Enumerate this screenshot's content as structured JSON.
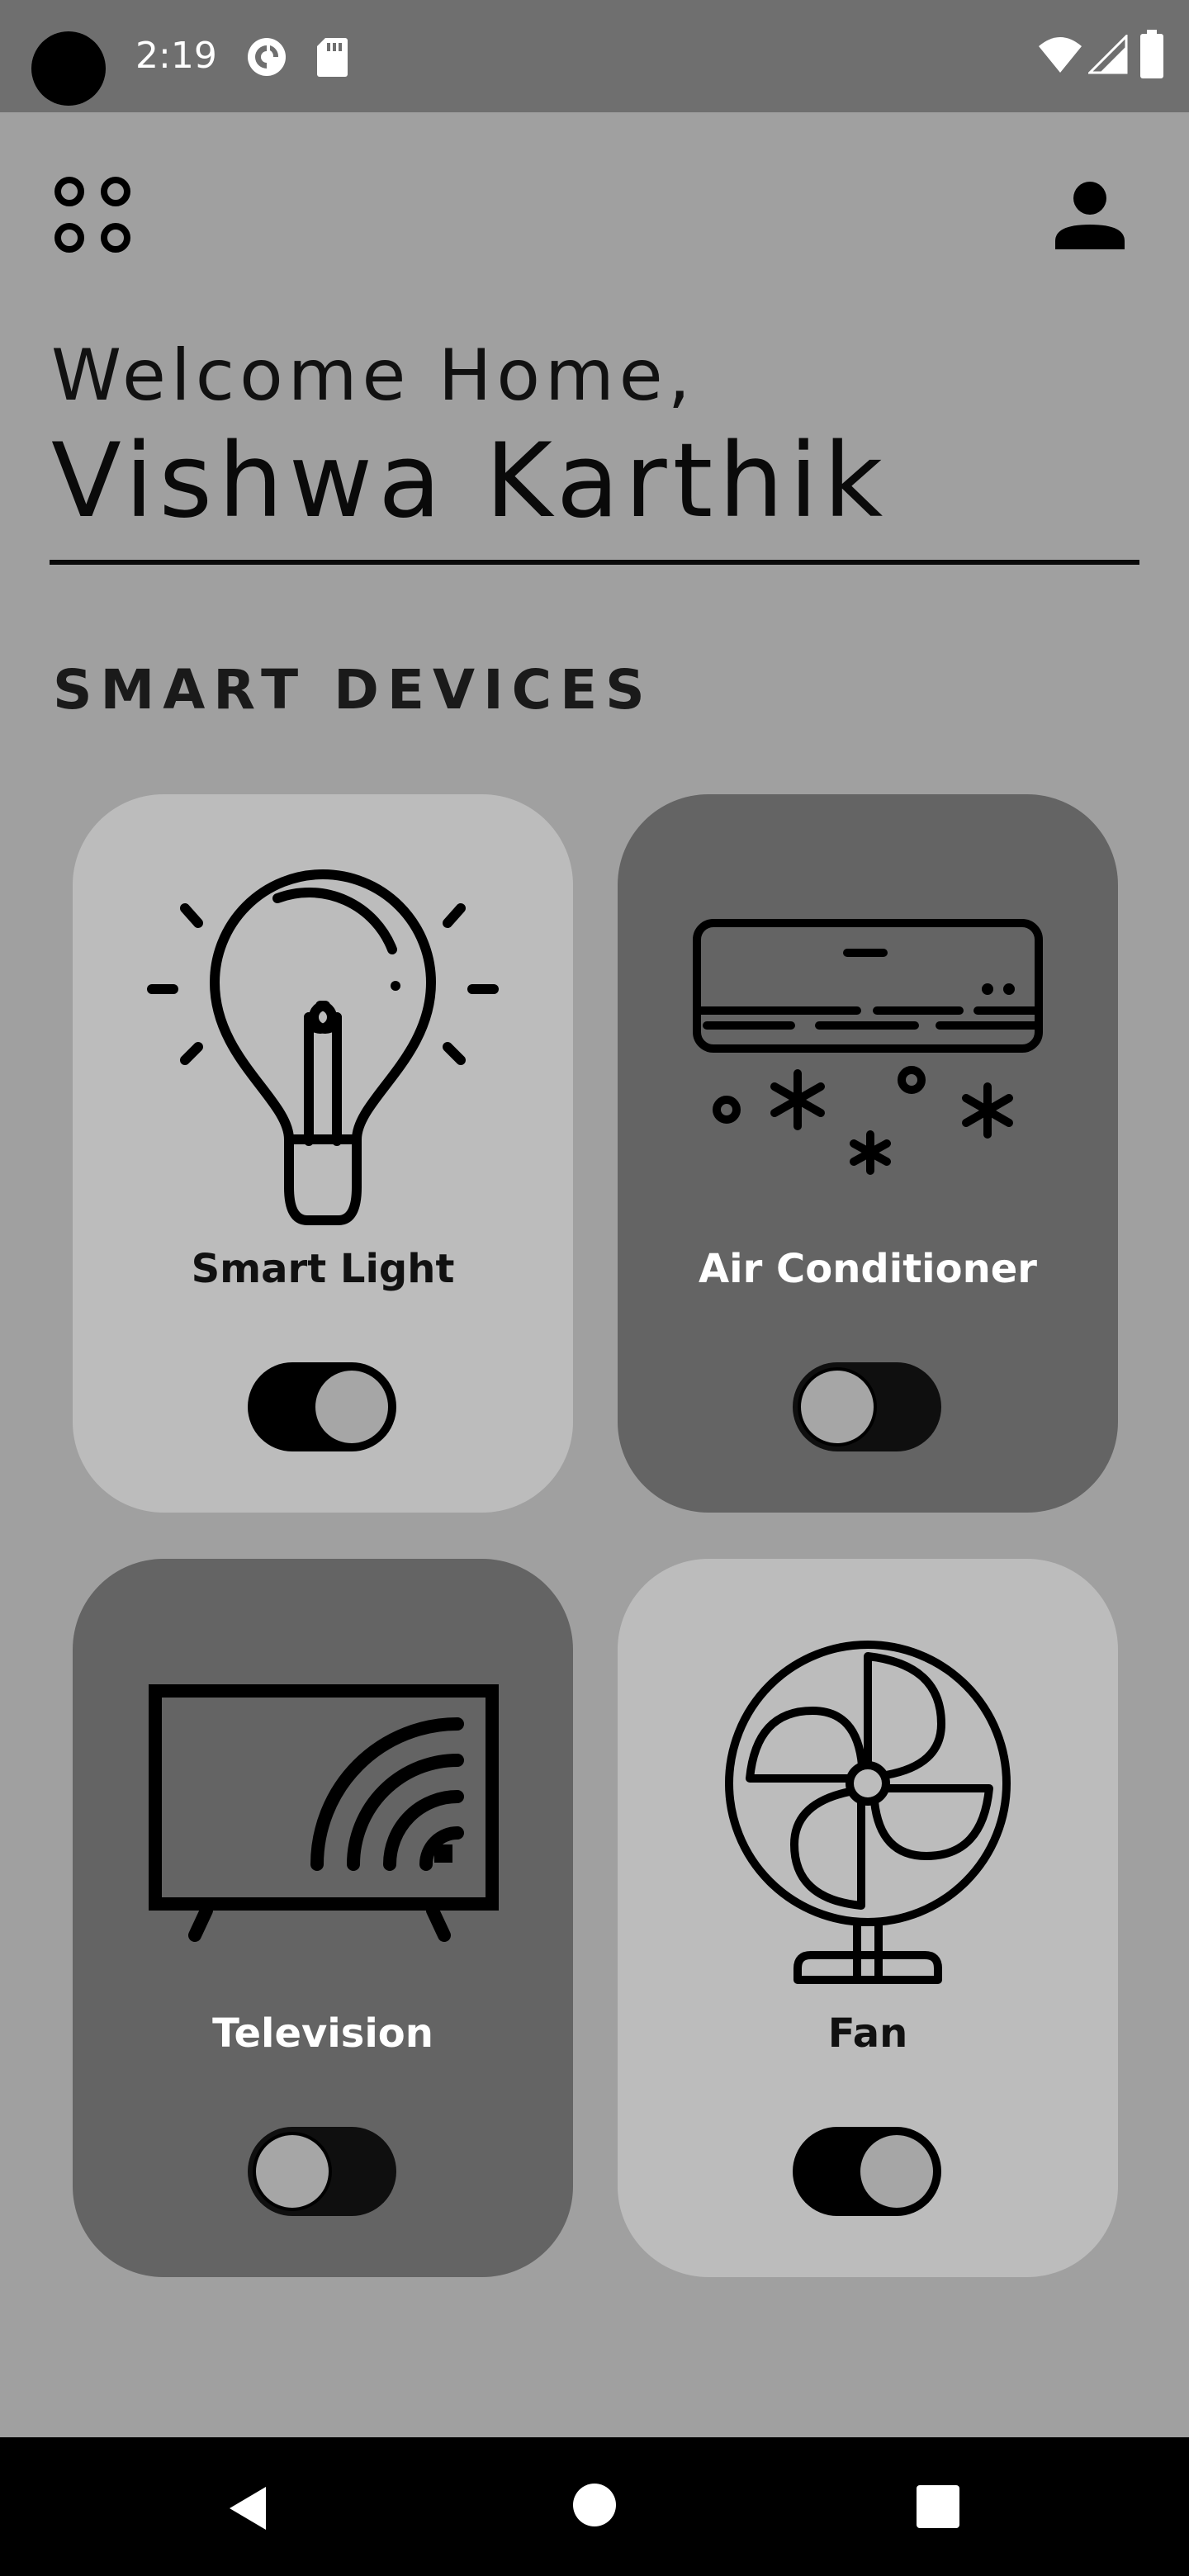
{
  "status_bar": {
    "time": "2:19",
    "icons": [
      "camera-dot",
      "pocket-casts-icon",
      "sd-card-icon",
      "wifi-icon",
      "signal-icon",
      "battery-icon"
    ]
  },
  "header": {
    "menu_icon": "grid-menu-icon",
    "profile_icon": "person-icon"
  },
  "welcome": {
    "greeting": "Welcome Home,",
    "name": "Vishwa Karthik"
  },
  "section": {
    "title": "SMART DEVICES"
  },
  "devices": [
    {
      "label": "Smart Light",
      "icon": "lightbulb-icon",
      "on": true,
      "theme": "light"
    },
    {
      "label": "Air Conditioner",
      "icon": "air-conditioner-icon",
      "on": false,
      "theme": "dark"
    },
    {
      "label": "Television",
      "icon": "smart-tv-icon",
      "on": false,
      "theme": "dark"
    },
    {
      "label": "Fan",
      "icon": "fan-icon",
      "on": true,
      "theme": "light"
    }
  ],
  "nav": {
    "icons": [
      "back-icon",
      "home-icon",
      "recents-icon"
    ]
  },
  "colors": {
    "background": "#a0a0a0",
    "status_bar": "#6f6f6f",
    "card_light": "#bcbcbc",
    "card_dark": "#646464",
    "knob": "#a6a6a6"
  }
}
